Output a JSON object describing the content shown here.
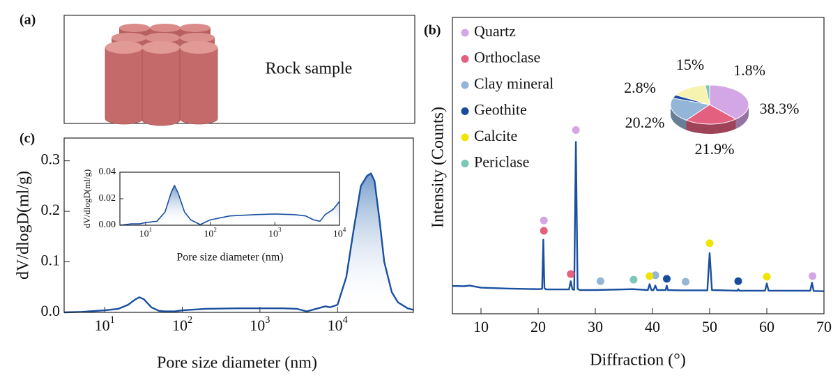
{
  "panel_labels": [
    "(a)",
    "(b)",
    "(c)"
  ],
  "rock_label": "Rock sample",
  "chart_data": [
    {
      "type": "line",
      "xscale": "log",
      "xlim": [
        3,
        95000
      ],
      "ylim": [
        0,
        0.345
      ],
      "xticks": [
        {
          "value": 10,
          "label": "10",
          "sup": "1"
        },
        {
          "value": 100,
          "label": "10",
          "sup": "2"
        },
        {
          "value": 1000,
          "label": "10",
          "sup": "3"
        },
        {
          "value": 10000,
          "label": "10",
          "sup": "4"
        }
      ],
      "yticks": [
        {
          "value": 0,
          "label": "0.0"
        },
        0.1,
        0.2,
        0.3
      ],
      "x_label": "Pore size diameter (nm)",
      "y_label": "dV/dlogD(ml/g)",
      "color": "#1a4f9f",
      "x": [
        3,
        5,
        8,
        10,
        15,
        20,
        25,
        28,
        32,
        40,
        50,
        60,
        80,
        100,
        200,
        500,
        1000,
        2000,
        3000,
        4000,
        5000,
        7000,
        8000,
        10000,
        13000,
        16000,
        20000,
        24000,
        27000,
        30000,
        35000,
        40000,
        50000,
        60000,
        80000,
        95000
      ],
      "values": [
        0,
        0.001,
        0.003,
        0.004,
        0.007,
        0.015,
        0.026,
        0.03,
        0.026,
        0.01,
        0.003,
        0.002,
        0.002,
        0.004,
        0.007,
        0.008,
        0.008,
        0.008,
        0.007,
        0.002,
        0.006,
        0.012,
        0.01,
        0.015,
        0.07,
        0.16,
        0.25,
        0.27,
        0.275,
        0.26,
        0.18,
        0.1,
        0.04,
        0.02,
        0.008,
        0.005
      ]
    },
    {
      "type": "line",
      "xscale": "log",
      "xlim": [
        4,
        10000
      ],
      "ylim": [
        0,
        0.04
      ],
      "xticks": [
        {
          "value": 10,
          "label": "10",
          "sup": "1"
        },
        {
          "value": 100,
          "label": "10",
          "sup": "2"
        },
        {
          "value": 1000,
          "label": "10",
          "sup": "3"
        },
        {
          "value": 10000,
          "label": "10",
          "sup": "4"
        }
      ],
      "yticks": [
        {
          "value": 0,
          "label": "0.00"
        },
        0.02,
        0.04
      ],
      "x_label": "Pore size diameter (nm)",
      "y_label": "dV/dlogD(ml/g)",
      "color": "#1a4f9f",
      "x": [
        4,
        6,
        8,
        10,
        15,
        20,
        25,
        28,
        32,
        40,
        50,
        70,
        100,
        200,
        500,
        1000,
        2000,
        3000,
        4000,
        5000,
        6000,
        8000,
        10000
      ],
      "values": [
        0,
        0.001,
        0.001,
        0.002,
        0.003,
        0.01,
        0.025,
        0.03,
        0.024,
        0.01,
        0.004,
        0.0005,
        0.004,
        0.007,
        0.008,
        0.0085,
        0.008,
        0.007,
        0.004,
        0.003,
        0.008,
        0.012,
        0.018
      ]
    },
    {
      "type": "line",
      "xlim": [
        5,
        70
      ],
      "ylim": [
        0,
        100
      ],
      "xticks": [
        10,
        20,
        30,
        40,
        50,
        60,
        70
      ],
      "x_label": "Diffraction (°)",
      "y_label": "Intensity (Counts)",
      "color": "#1a4f9f",
      "legend": "upper left",
      "x": [
        5,
        7,
        8,
        10,
        15,
        20,
        20.7,
        20.9,
        21.1,
        21.4,
        25.4,
        25.7,
        26.0,
        26.3,
        26.6,
        26.9,
        27.3,
        30,
        36.5,
        39.2,
        39.5,
        39.8,
        40.2,
        40.5,
        40.8,
        42.3,
        42.5,
        42.7,
        45,
        49.6,
        50.0,
        50.4,
        54.9,
        55,
        55.2,
        59.7,
        60,
        60.3,
        64,
        67.6,
        67.9,
        68.2,
        70
      ],
      "values": [
        9.4,
        9.3,
        9.5,
        8.8,
        8.5,
        8.3,
        8.4,
        25,
        8.6,
        8.2,
        8.2,
        11,
        8.2,
        8.1,
        58,
        8.4,
        8.0,
        8.0,
        8.3,
        8.0,
        10,
        8.0,
        8.0,
        9.5,
        8.0,
        8.0,
        9.5,
        8.0,
        7.9,
        7.9,
        20.5,
        8.0,
        7.8,
        8.3,
        7.8,
        7.8,
        10.2,
        7.8,
        7.8,
        7.8,
        10.5,
        7.7,
        7.6
      ],
      "series": [
        {
          "name": "Quartz",
          "color": "#d3a6e6",
          "x": [
            21,
            26.6,
            68
          ],
          "values": [
            31.5,
            62,
            12.7
          ]
        },
        {
          "name": "Orthoclase",
          "color": "#e3607f",
          "x": [
            21,
            25.7
          ],
          "values": [
            28,
            13.4
          ]
        },
        {
          "name": "Clay mineral",
          "color": "#93b5d8",
          "x": [
            30.9,
            40.5,
            45.8
          ],
          "values": [
            11,
            13,
            10.8
          ]
        },
        {
          "name": "Geothite",
          "color": "#1a4c9c",
          "x": [
            42.5,
            55
          ],
          "values": [
            11.8,
            11
          ]
        },
        {
          "name": "Calcite",
          "color": "#f0e400",
          "x": [
            39.5,
            50,
            60
          ],
          "values": [
            12.7,
            23.8,
            12.5
          ]
        },
        {
          "name": "Periclase",
          "color": "#7cc7b8",
          "x": [
            36.7
          ],
          "values": [
            11.5
          ]
        }
      ]
    },
    {
      "type": "pie",
      "values": [
        38.3,
        21.9,
        20.2,
        2.8,
        15,
        1.8
      ],
      "value_labels": [
        "38.3%",
        "21.9%",
        "20.2%",
        "2.8%",
        "15%",
        "1.8%"
      ],
      "colors": [
        "#d3a6e6",
        "#e3607f",
        "#93b5d8",
        "#1a4c9c",
        "#f6f2b0",
        "#7cc7b8"
      ]
    }
  ]
}
